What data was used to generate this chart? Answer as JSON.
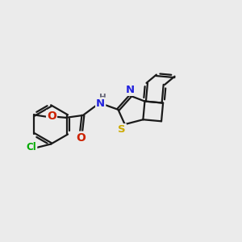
{
  "background_color": "#ebebeb",
  "bond_color": "#1a1a1a",
  "atom_colors": {
    "Cl": "#00aa00",
    "O": "#cc2200",
    "N": "#2222dd",
    "S": "#ccaa00",
    "H": "#666677",
    "C": "#1a1a1a"
  },
  "bond_width": 1.6,
  "font_size_atom": 8.5,
  "figsize": [
    3.0,
    3.0
  ],
  "dpi": 100
}
